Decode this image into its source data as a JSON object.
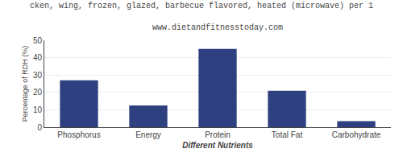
{
  "chart_data": {
    "type": "bar",
    "title": "cken, wing, frozen, glazed, barbecue flavored, heated (microwave) per 1",
    "subtitle": "www.dietandfitnesstoday.com",
    "categories": [
      "Phosphorus",
      "Energy",
      "Protein",
      "Total Fat",
      "Carbohydrate"
    ],
    "values": [
      27,
      12.5,
      45,
      21,
      3.5
    ],
    "color": "#2e4080",
    "xlabel": "Different Nutrients",
    "ylabel": "Percentage of RDH (%)",
    "ylim": [
      0,
      50
    ],
    "yticks": [
      0,
      10,
      20,
      30,
      40,
      50
    ],
    "grid": true
  }
}
